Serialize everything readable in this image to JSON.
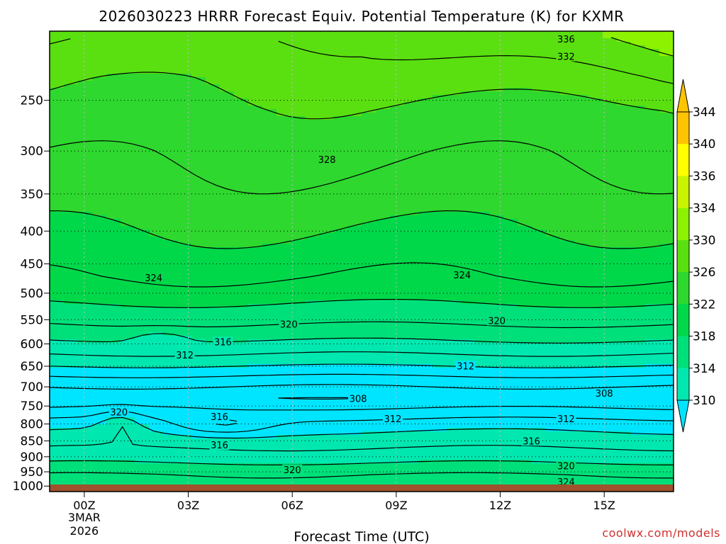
{
  "chart_data": {
    "type": "contour",
    "title": "2026030223 HRRR Forecast Equiv. Potential Temperature (K) for KXMR",
    "xlabel": "Forecast Time (UTC)",
    "ylabel": "",
    "x_ticks": [
      "00Z",
      "03Z",
      "06Z",
      "09Z",
      "12Z",
      "15Z"
    ],
    "x_hours": [
      0,
      3,
      6,
      9,
      12,
      15
    ],
    "x_range_hours": [
      -1,
      17
    ],
    "x_date_label": [
      "3MAR",
      "2026"
    ],
    "y_ticks": [
      "250",
      "300",
      "350",
      "400",
      "450",
      "500",
      "550",
      "600",
      "650",
      "700",
      "750",
      "800",
      "850",
      "900",
      "950",
      "1000"
    ],
    "y_values": [
      250,
      300,
      350,
      400,
      450,
      500,
      550,
      600,
      650,
      700,
      750,
      800,
      850,
      900,
      950,
      1000
    ],
    "y_range_hpa": [
      1020,
      195
    ],
    "y_scale": "log-pressure",
    "grid": true,
    "colorbar": {
      "ticks": [
        "310",
        "314",
        "318",
        "322",
        "326",
        "330",
        "334",
        "336",
        "340",
        "344"
      ],
      "levels": [
        310,
        314,
        318,
        322,
        326,
        330,
        334,
        336,
        340,
        344
      ]
    },
    "profile": {
      "pressure": [
        200,
        230,
        260,
        300,
        350,
        390,
        430,
        470,
        510,
        550,
        590,
        640,
        690,
        730,
        770,
        810,
        860,
        910,
        960,
        1010
      ],
      "theta_e": [
        332,
        330.5,
        329.5,
        328.4,
        327.3,
        326.2,
        325.2,
        324.1,
        322.4,
        320.6,
        318.2,
        314.8,
        310.6,
        308.2,
        311,
        313.5,
        315.5,
        317.5,
        320,
        321.5
      ]
    },
    "contour_labels": [
      {
        "text": "336",
        "hour": 13.9,
        "p": 201
      },
      {
        "text": "332",
        "hour": 13.9,
        "p": 214
      },
      {
        "text": "328",
        "hour": 7.0,
        "p": 310
      },
      {
        "text": "324",
        "hour": 2.0,
        "p": 474
      },
      {
        "text": "324",
        "hour": 10.9,
        "p": 469
      },
      {
        "text": "320",
        "hour": 5.9,
        "p": 560
      },
      {
        "text": "320",
        "hour": 11.9,
        "p": 553
      },
      {
        "text": "316",
        "hour": 4.0,
        "p": 597
      },
      {
        "text": "312",
        "hour": 2.9,
        "p": 626
      },
      {
        "text": "312",
        "hour": 11.0,
        "p": 651
      },
      {
        "text": "308",
        "hour": 7.9,
        "p": 732
      },
      {
        "text": "308",
        "hour": 15.0,
        "p": 718
      },
      {
        "text": "320",
        "hour": 1.0,
        "p": 768
      },
      {
        "text": "316",
        "hour": 3.9,
        "p": 781
      },
      {
        "text": "312",
        "hour": 8.9,
        "p": 787
      },
      {
        "text": "312",
        "hour": 13.9,
        "p": 787
      },
      {
        "text": "316",
        "hour": 3.9,
        "p": 865
      },
      {
        "text": "316",
        "hour": 12.9,
        "p": 852
      },
      {
        "text": "320",
        "hour": 6.0,
        "p": 945
      },
      {
        "text": "320",
        "hour": 13.9,
        "p": 932
      },
      {
        "text": "324",
        "hour": 13.9,
        "p": 987
      }
    ],
    "colors": {
      "c310": "#00e5ff",
      "c314": "#00e8b0",
      "c318": "#00e07a",
      "c322": "#00d84a",
      "c326": "#2ed82e",
      "c330": "#5ae010",
      "c334": "#8cf200",
      "c336": "#c8f400",
      "c340": "#ffff00",
      "c344": "#ffc400",
      "ground": "#a0522d"
    },
    "credit": "coolwx.com/models"
  }
}
